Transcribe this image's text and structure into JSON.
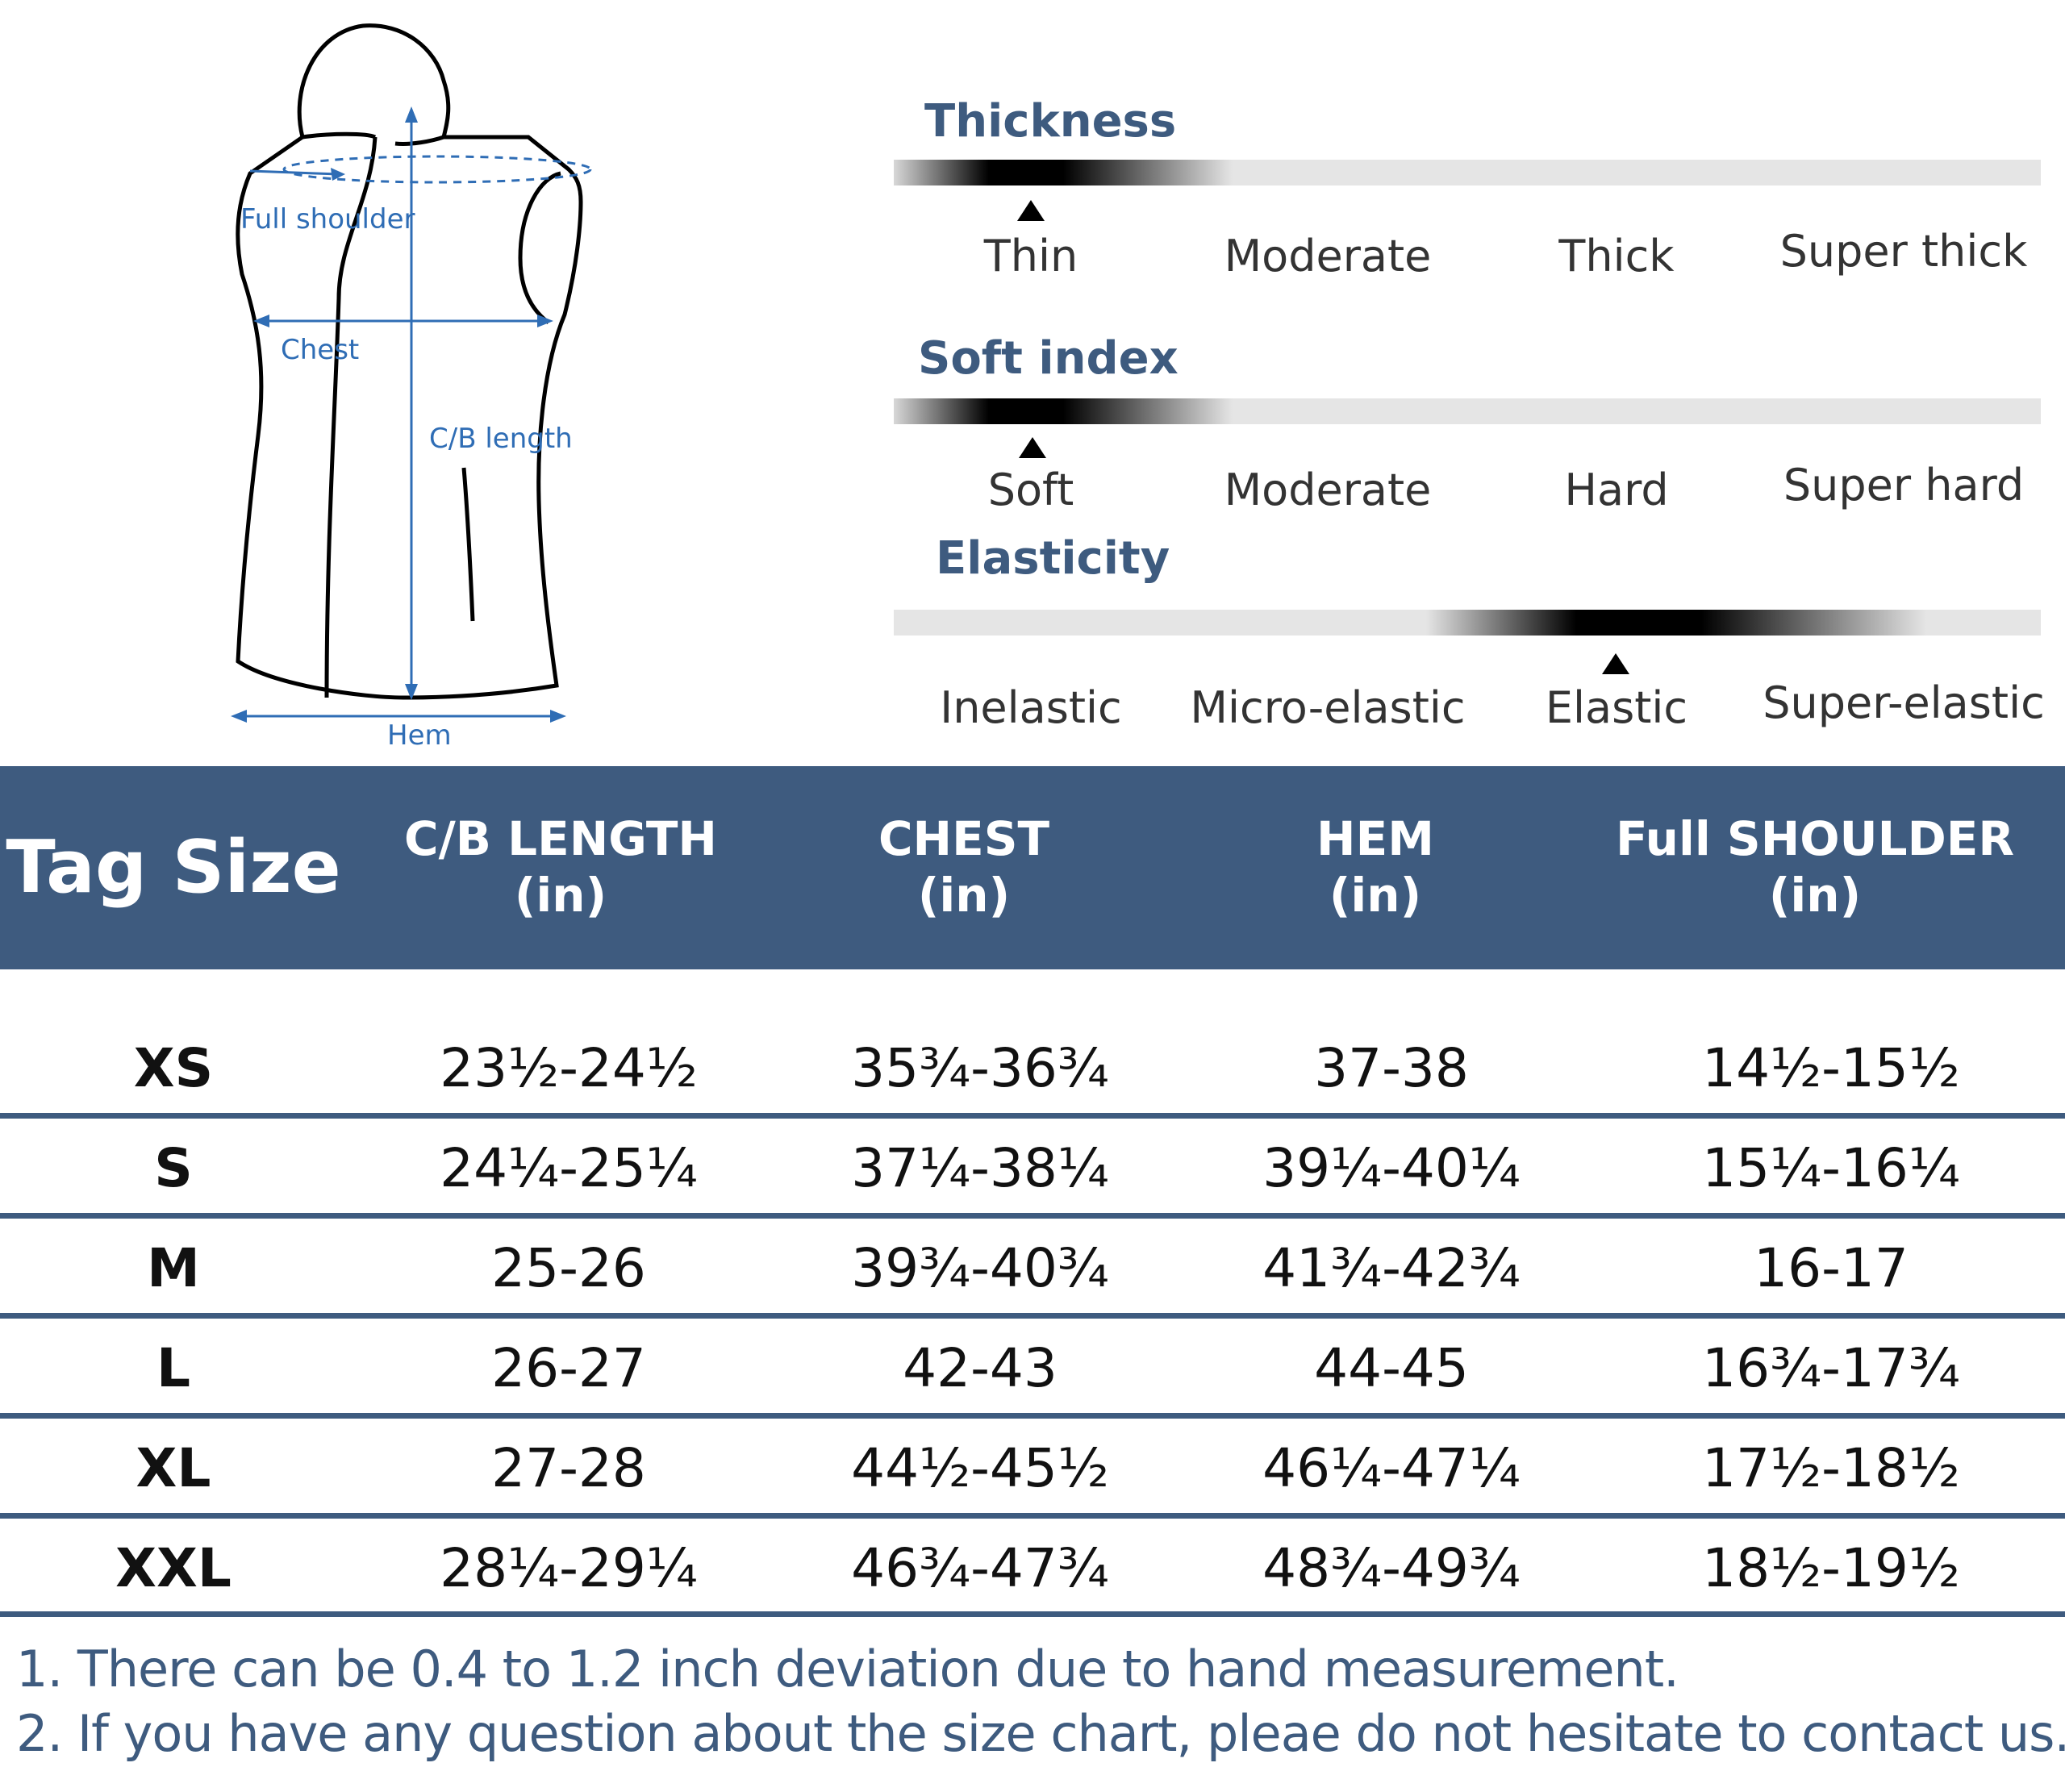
{
  "diagram": {
    "labels": {
      "full_shoulder": "Full shoulder",
      "chest": "Chest",
      "cb_length": "C/B length",
      "hem": "Hem"
    }
  },
  "scales": [
    {
      "title": "Thickness",
      "options": [
        "Thin",
        "Moderate",
        "Thick",
        "Super thick"
      ],
      "selected": "Thin"
    },
    {
      "title": "Soft index",
      "options": [
        "Soft",
        "Moderate",
        "Hard",
        "Super hard"
      ],
      "selected": "Soft"
    },
    {
      "title": "Elasticity",
      "options": [
        "Inelastic",
        "Micro-elastic",
        "Elastic",
        "Super-elastic"
      ],
      "selected": "Elastic"
    }
  ],
  "table": {
    "headers": {
      "tag_size": "Tag Size",
      "cb_length": [
        "C/B LENGTH",
        "(in)"
      ],
      "chest": [
        "CHEST",
        "(in)"
      ],
      "hem": [
        "HEM",
        "(in)"
      ],
      "full_shoulder": [
        "Full SHOULDER",
        "(in)"
      ]
    },
    "rows": [
      {
        "size": "XS",
        "cb_length": "23½-24½",
        "chest": "35¾-36¾",
        "hem": "37-38",
        "full_shoulder": "14½-15½"
      },
      {
        "size": "S",
        "cb_length": "24¼-25¼",
        "chest": "37¼-38¼",
        "hem": "39¼-40¼",
        "full_shoulder": "15¼-16¼"
      },
      {
        "size": "M",
        "cb_length": "25-26",
        "chest": "39¾-40¾",
        "hem": "41¾-42¾",
        "full_shoulder": "16-17"
      },
      {
        "size": "L",
        "cb_length": "26-27",
        "chest": "42-43",
        "hem": "44-45",
        "full_shoulder": "16¾-17¾"
      },
      {
        "size": "XL",
        "cb_length": "27-28",
        "chest": "44½-45½",
        "hem": "46¼-47¼",
        "full_shoulder": "17½-18½"
      },
      {
        "size": "XXL",
        "cb_length": "28¼-29¼",
        "chest": "46¾-47¾",
        "hem": "48¾-49¾",
        "full_shoulder": "18½-19½"
      }
    ]
  },
  "notes": [
    "1. There can be 0.4 to 1.2 inch deviation due to hand measurement.",
    "2. If you have any question about the size chart, pleae do not hesitate to contact us."
  ],
  "colors": {
    "header_bg": "#3e5b7f",
    "note_text": "#3e5b7f",
    "measure_blue": "#2f6db5"
  }
}
